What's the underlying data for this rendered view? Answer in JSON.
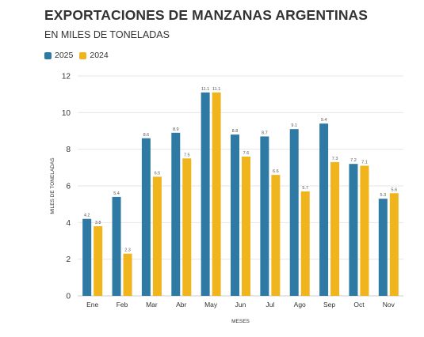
{
  "header": {
    "title": "EXPORTACIONES DE MANZANAS ARGENTINAS",
    "subtitle": "EN MILES DE TONELADAS"
  },
  "colors": {
    "series_2025": "#2f79a5",
    "series_2024": "#f0b41c",
    "grid": "#e6e6e6",
    "text": "#333333"
  },
  "chart_data": {
    "type": "bar",
    "title": "EXPORTACIONES DE MANZANAS ARGENTINAS",
    "subtitle": "EN MILES DE TONELADAS",
    "xlabel": "MESES",
    "ylabel": "MILES DE TONELADAS",
    "categories": [
      "Ene",
      "Feb",
      "Mar",
      "Abr",
      "May",
      "Jun",
      "Jul",
      "Ago",
      "Sep",
      "Oct",
      "Nov"
    ],
    "series": [
      {
        "name": "2025",
        "color": "#2f79a5",
        "values": [
          4.2,
          5.4,
          8.6,
          8.9,
          11.1,
          8.8,
          8.7,
          9.1,
          9.4,
          7.2,
          5.3
        ]
      },
      {
        "name": "2024",
        "color": "#f0b41c",
        "values": [
          3.8,
          2.3,
          6.5,
          7.5,
          11.1,
          7.6,
          6.6,
          5.7,
          7.3,
          7.1,
          5.6
        ]
      }
    ],
    "ylim": [
      0,
      12
    ],
    "yticks": [
      0,
      2,
      4,
      6,
      8,
      10,
      12
    ],
    "grid": true,
    "legend": "top-left",
    "data_labels": true
  }
}
